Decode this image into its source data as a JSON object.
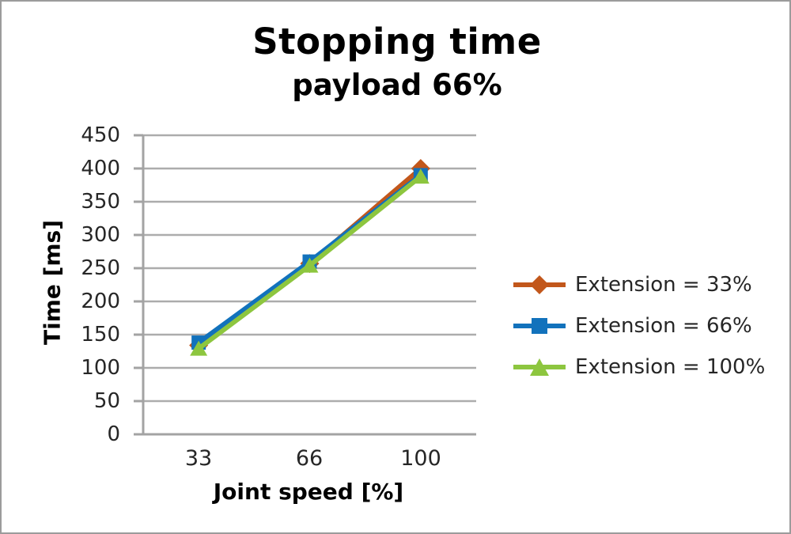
{
  "frame": {
    "background_color": "#FFFFFF",
    "border_color": "#9B9B9B"
  },
  "chart_data": {
    "type": "line",
    "title": "Stopping time",
    "subtitle": "payload 66%",
    "xlabel": "Joint speed [%]",
    "ylabel": "Time [ms]",
    "categories": [
      "33",
      "66",
      "100"
    ],
    "x": [
      33,
      66,
      100
    ],
    "ylim": [
      0,
      450
    ],
    "ytick_step": 50,
    "yticks": [
      "450",
      "400",
      "350",
      "300",
      "250",
      "200",
      "150",
      "100",
      "50",
      "0"
    ],
    "grid": "horizontal",
    "legend_position": "right",
    "axis_color": "#A3A3A3",
    "grid_color": "#ACACAC",
    "tick_text_color": "#262626",
    "series": [
      {
        "name": "Extension = 33%",
        "marker": "diamond",
        "color": "#C2571B",
        "values": [
          134,
          257,
          400
        ]
      },
      {
        "name": "Extension = 66%",
        "marker": "square",
        "color": "#1272BC",
        "values": [
          138,
          260,
          390
        ]
      },
      {
        "name": "Extension = 100%",
        "marker": "triangle",
        "color": "#8DC63F",
        "values": [
          129,
          254,
          388
        ]
      }
    ]
  }
}
